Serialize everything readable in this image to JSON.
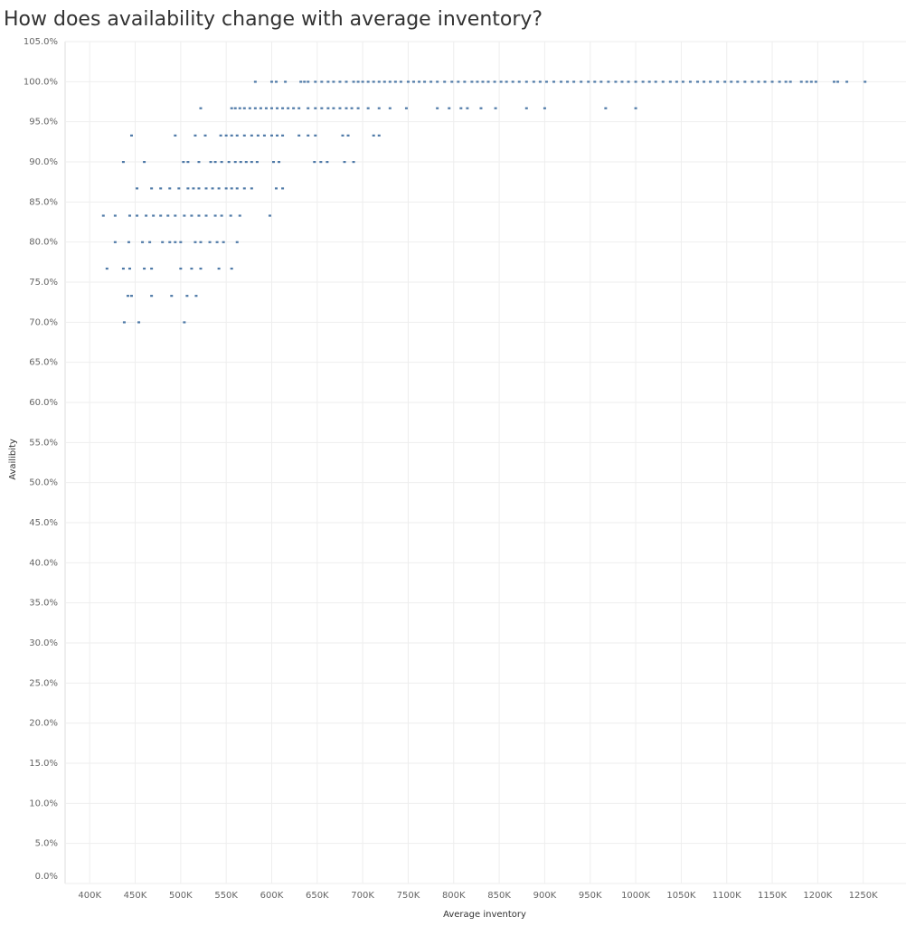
{
  "chart_data": {
    "type": "scatter",
    "title": "How does availability change with average inventory?",
    "x_label": "Average inventory",
    "y_label": "Availibity",
    "color": "#4e79a7",
    "grid": true,
    "xlim": [
      371000,
      1297000
    ],
    "ylim": [
      0,
      105
    ],
    "xticks": [
      {
        "value": 400000,
        "label": "400K"
      },
      {
        "value": 450000,
        "label": "450K"
      },
      {
        "value": 500000,
        "label": "500K"
      },
      {
        "value": 550000,
        "label": "550K"
      },
      {
        "value": 600000,
        "label": "600K"
      },
      {
        "value": 650000,
        "label": "650K"
      },
      {
        "value": 700000,
        "label": "700K"
      },
      {
        "value": 750000,
        "label": "750K"
      },
      {
        "value": 800000,
        "label": "800K"
      },
      {
        "value": 850000,
        "label": "850K"
      },
      {
        "value": 900000,
        "label": "900K"
      },
      {
        "value": 950000,
        "label": "950K"
      },
      {
        "value": 1000000,
        "label": "1000K"
      },
      {
        "value": 1050000,
        "label": "1050K"
      },
      {
        "value": 1100000,
        "label": "1100K"
      },
      {
        "value": 1150000,
        "label": "1150K"
      },
      {
        "value": 1200000,
        "label": "1200K"
      },
      {
        "value": 1250000,
        "label": "1250K"
      }
    ],
    "yticks": [
      {
        "value": 0,
        "label": "0.0%"
      },
      {
        "value": 5,
        "label": "5.0%"
      },
      {
        "value": 10,
        "label": "10.0%"
      },
      {
        "value": 15,
        "label": "15.0%"
      },
      {
        "value": 20,
        "label": "20.0%"
      },
      {
        "value": 25,
        "label": "25.0%"
      },
      {
        "value": 30,
        "label": "30.0%"
      },
      {
        "value": 35,
        "label": "35.0%"
      },
      {
        "value": 40,
        "label": "40.0%"
      },
      {
        "value": 45,
        "label": "45.0%"
      },
      {
        "value": 50,
        "label": "50.0%"
      },
      {
        "value": 55,
        "label": "55.0%"
      },
      {
        "value": 60,
        "label": "60.0%"
      },
      {
        "value": 65,
        "label": "65.0%"
      },
      {
        "value": 70,
        "label": "70.0%"
      },
      {
        "value": 75,
        "label": "75.0%"
      },
      {
        "value": 80,
        "label": "80.0%"
      },
      {
        "value": 85,
        "label": "85.0%"
      },
      {
        "value": 90,
        "label": "90.0%"
      },
      {
        "value": 95,
        "label": "95.0%"
      },
      {
        "value": 100,
        "label": "100.0%"
      },
      {
        "value": 105,
        "label": "105.0%"
      }
    ],
    "x": [
      582000,
      600000,
      605000,
      615000,
      632000,
      636000,
      640000,
      648000,
      655000,
      662000,
      668000,
      675000,
      682000,
      690000,
      695000,
      700000,
      706000,
      712000,
      718000,
      724000,
      730000,
      736000,
      742000,
      750000,
      756000,
      762000,
      768000,
      775000,
      782000,
      790000,
      798000,
      805000,
      812000,
      820000,
      826000,
      832000,
      838000,
      845000,
      852000,
      858000,
      865000,
      872000,
      880000,
      888000,
      895000,
      902000,
      910000,
      918000,
      925000,
      932000,
      940000,
      948000,
      955000,
      962000,
      970000,
      978000,
      985000,
      992000,
      1000000,
      1008000,
      1015000,
      1022000,
      1030000,
      1038000,
      1045000,
      1052000,
      1060000,
      1068000,
      1075000,
      1082000,
      1090000,
      1098000,
      1105000,
      1112000,
      1120000,
      1128000,
      1135000,
      1142000,
      1150000,
      1158000,
      1165000,
      1170000,
      1182000,
      1188000,
      1193000,
      1198000,
      1218000,
      1222000,
      1232000,
      1252000,
      522000,
      556000,
      560000,
      565000,
      570000,
      576000,
      582000,
      588000,
      594000,
      600000,
      606000,
      612000,
      618000,
      624000,
      630000,
      640000,
      648000,
      655000,
      662000,
      668000,
      675000,
      682000,
      688000,
      695000,
      706000,
      718000,
      730000,
      748000,
      782000,
      795000,
      808000,
      815000,
      830000,
      846000,
      880000,
      900000,
      967000,
      1000000,
      446000,
      494000,
      516000,
      527000,
      544000,
      550000,
      556000,
      562000,
      570000,
      578000,
      585000,
      592000,
      600000,
      606000,
      612000,
      630000,
      640000,
      648000,
      678000,
      684000,
      712000,
      718000,
      437000,
      460000,
      503000,
      508000,
      520000,
      533000,
      538000,
      545000,
      553000,
      560000,
      566000,
      572000,
      578000,
      584000,
      602000,
      608000,
      647000,
      654000,
      661000,
      680000,
      690000,
      452000,
      468000,
      478000,
      488000,
      498000,
      508000,
      514000,
      520000,
      528000,
      535000,
      542000,
      550000,
      556000,
      562000,
      570000,
      578000,
      605000,
      612000,
      415000,
      428000,
      444000,
      452000,
      462000,
      470000,
      478000,
      486000,
      494000,
      504000,
      512000,
      520000,
      528000,
      538000,
      545000,
      555000,
      565000,
      598000,
      428000,
      443000,
      458000,
      466000,
      480000,
      488000,
      494000,
      500000,
      516000,
      522000,
      532000,
      540000,
      547000,
      562000,
      419000,
      437000,
      444000,
      460000,
      468000,
      500000,
      512000,
      522000,
      542000,
      556000,
      442000,
      446000,
      468000,
      490000,
      507000,
      517000,
      438000,
      454000,
      504000
    ],
    "values": [
      100,
      100,
      100,
      100,
      100,
      100,
      100,
      100,
      100,
      100,
      100,
      100,
      100,
      100,
      100,
      100,
      100,
      100,
      100,
      100,
      100,
      100,
      100,
      100,
      100,
      100,
      100,
      100,
      100,
      100,
      100,
      100,
      100,
      100,
      100,
      100,
      100,
      100,
      100,
      100,
      100,
      100,
      100,
      100,
      100,
      100,
      100,
      100,
      100,
      100,
      100,
      100,
      100,
      100,
      100,
      100,
      100,
      100,
      100,
      100,
      100,
      100,
      100,
      100,
      100,
      100,
      100,
      100,
      100,
      100,
      100,
      100,
      100,
      100,
      100,
      100,
      100,
      100,
      100,
      100,
      100,
      100,
      100,
      100,
      100,
      100,
      100,
      100,
      100,
      100,
      96.7,
      96.7,
      96.7,
      96.7,
      96.7,
      96.7,
      96.7,
      96.7,
      96.7,
      96.7,
      96.7,
      96.7,
      96.7,
      96.7,
      96.7,
      96.7,
      96.7,
      96.7,
      96.7,
      96.7,
      96.7,
      96.7,
      96.7,
      96.7,
      96.7,
      96.7,
      96.7,
      96.7,
      96.7,
      96.7,
      96.7,
      96.7,
      96.7,
      96.7,
      96.7,
      96.7,
      96.7,
      96.7,
      93.3,
      93.3,
      93.3,
      93.3,
      93.3,
      93.3,
      93.3,
      93.3,
      93.3,
      93.3,
      93.3,
      93.3,
      93.3,
      93.3,
      93.3,
      93.3,
      93.3,
      93.3,
      93.3,
      93.3,
      93.3,
      93.3,
      90,
      90,
      90,
      90,
      90,
      90,
      90,
      90,
      90,
      90,
      90,
      90,
      90,
      90,
      90,
      90,
      90,
      90,
      90,
      90,
      90,
      86.7,
      86.7,
      86.7,
      86.7,
      86.7,
      86.7,
      86.7,
      86.7,
      86.7,
      86.7,
      86.7,
      86.7,
      86.7,
      86.7,
      86.7,
      86.7,
      86.7,
      86.7,
      83.3,
      83.3,
      83.3,
      83.3,
      83.3,
      83.3,
      83.3,
      83.3,
      83.3,
      83.3,
      83.3,
      83.3,
      83.3,
      83.3,
      83.3,
      83.3,
      83.3,
      83.3,
      80,
      80,
      80,
      80,
      80,
      80,
      80,
      80,
      80,
      80,
      80,
      80,
      80,
      80,
      76.7,
      76.7,
      76.7,
      76.7,
      76.7,
      76.7,
      76.7,
      76.7,
      76.7,
      76.7,
      73.3,
      73.3,
      73.3,
      73.3,
      73.3,
      73.3,
      70,
      70,
      70
    ]
  }
}
